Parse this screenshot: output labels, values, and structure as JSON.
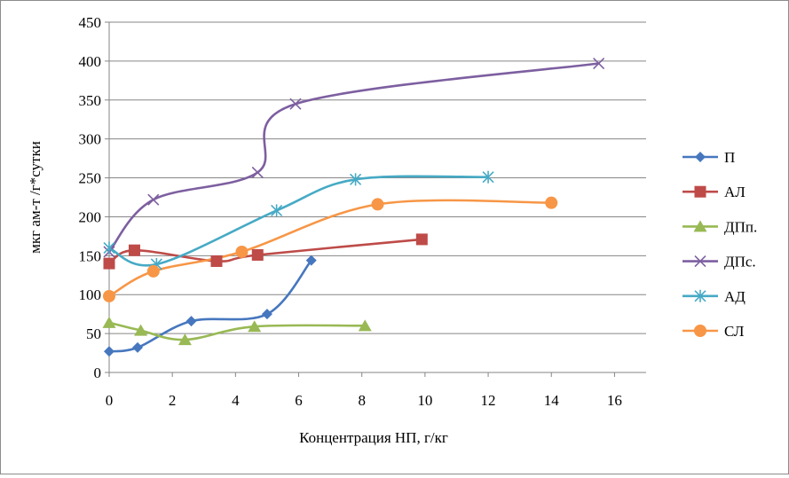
{
  "chart_data": {
    "type": "line",
    "smooth": true,
    "xlabel": "Концентрация НП, г/кг",
    "ylabel": "мкг ам-т /г*сутки",
    "xlim": [
      0,
      17
    ],
    "ylim": [
      0,
      450
    ],
    "xticks": [
      0,
      2,
      4,
      6,
      8,
      10,
      12,
      14,
      16
    ],
    "yticks": [
      0,
      50,
      100,
      150,
      200,
      250,
      300,
      350,
      400,
      450
    ],
    "grid": "horizontal",
    "legend_position": "right",
    "series": [
      {
        "name": "П",
        "color": "#4677BE",
        "marker": "diamond",
        "points": [
          [
            0,
            27
          ],
          [
            0.9,
            32
          ],
          [
            2.6,
            66
          ],
          [
            5,
            75
          ],
          [
            6.4,
            144
          ]
        ]
      },
      {
        "name": "АЛ",
        "color": "#BE4B48",
        "marker": "square",
        "points": [
          [
            0,
            140
          ],
          [
            0.8,
            157
          ],
          [
            3.4,
            143
          ],
          [
            4.7,
            151
          ],
          [
            9.9,
            171
          ]
        ]
      },
      {
        "name": "ДПп.",
        "color": "#98B954",
        "marker": "triangle",
        "points": [
          [
            0,
            64
          ],
          [
            1,
            54
          ],
          [
            2.4,
            42
          ],
          [
            4.6,
            59
          ],
          [
            8.1,
            60
          ]
        ]
      },
      {
        "name": "ДПс.",
        "color": "#7D5FA0",
        "marker": "x",
        "points": [
          [
            0,
            155
          ],
          [
            1.4,
            222
          ],
          [
            4.7,
            257
          ],
          [
            5.9,
            345
          ],
          [
            15.5,
            397
          ]
        ]
      },
      {
        "name": "АД",
        "color": "#46AAC5",
        "marker": "star",
        "points": [
          [
            0,
            160
          ],
          [
            1.5,
            139
          ],
          [
            5.3,
            208
          ],
          [
            7.8,
            248
          ],
          [
            12,
            251
          ]
        ]
      },
      {
        "name": "СЛ",
        "color": "#F79646",
        "marker": "circle",
        "points": [
          [
            0,
            98
          ],
          [
            1.4,
            130
          ],
          [
            4.2,
            155
          ],
          [
            8.5,
            216
          ],
          [
            14,
            218
          ]
        ]
      }
    ]
  }
}
